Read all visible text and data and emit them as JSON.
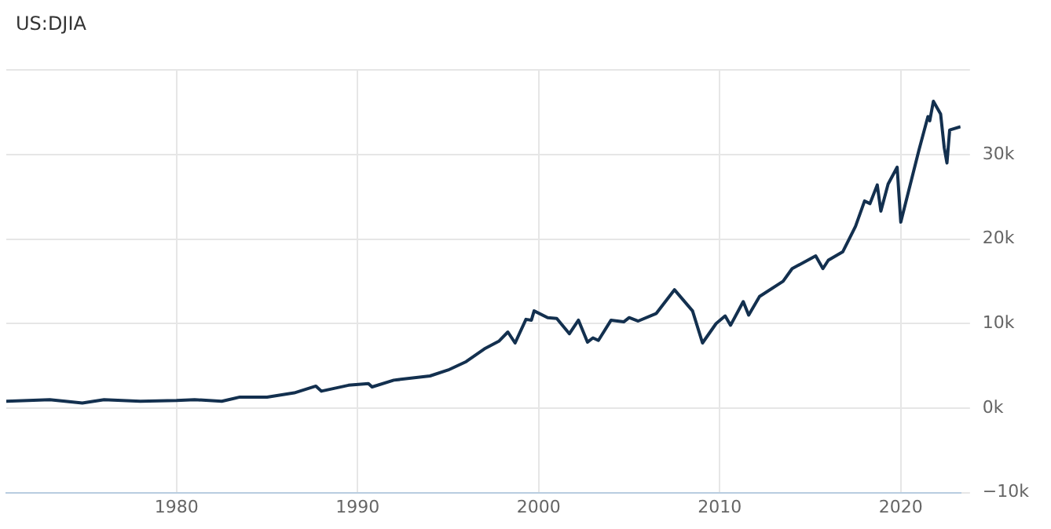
{
  "chart_data": {
    "type": "line",
    "title": "US:DJIA",
    "x": [
      1970.6,
      1973,
      1974.8,
      1976,
      1978,
      1980,
      1981,
      1982.5,
      1983.5,
      1985,
      1986.5,
      1987.7,
      1988,
      1989.5,
      1990.6,
      1990.8,
      1992,
      1994,
      1995,
      1996,
      1997,
      1997.8,
      1998.3,
      1998.7,
      1999.3,
      1999.6,
      1999.75,
      2000.5,
      2001,
      2001.7,
      2002.2,
      2002.7,
      2003,
      2003.3,
      2004,
      2004.7,
      2005,
      2005.5,
      2006.5,
      2007.5,
      2008.5,
      2009.05,
      2009.8,
      2010.3,
      2010.6,
      2011.3,
      2011.6,
      2012.2,
      2013.5,
      2014,
      2015.3,
      2015.7,
      2016,
      2016.8,
      2017.5,
      2018,
      2018.3,
      2018.7,
      2018.9,
      2019.3,
      2019.8,
      2020,
      2021,
      2021.5,
      2021.6,
      2021.8,
      2022.2,
      2022.4,
      2022.55,
      2022.7,
      2023.3
    ],
    "series": [
      {
        "color": "#13304f",
        "values": [
          800,
          1000,
          600,
          1000,
          800,
          900,
          1000,
          800,
          1300,
          1300,
          1800,
          2600,
          2000,
          2700,
          2900,
          2500,
          3300,
          3800,
          4500,
          5500,
          7000,
          7900,
          9000,
          7700,
          10500,
          10400,
          11500,
          10700,
          10600,
          8800,
          10400,
          7800,
          8300,
          8000,
          10400,
          10200,
          10700,
          10300,
          11200,
          14000,
          11500,
          7700,
          10000,
          10900,
          9800,
          12600,
          11000,
          13200,
          15000,
          16500,
          18000,
          16500,
          17500,
          18500,
          21500,
          24500,
          24200,
          26400,
          23300,
          26500,
          28500,
          22000,
          30500,
          34500,
          34000,
          36300,
          34800,
          30800,
          29000,
          32900,
          33300
        ]
      }
    ],
    "xlim": [
      1970.6,
      2023.3
    ],
    "xticks": [
      1980,
      1990,
      2000,
      2010,
      2020
    ],
    "ylim": [
      -10000,
      40000
    ],
    "yticks": [
      {
        "value": -10000,
        "label": "−10k"
      },
      {
        "value": 0,
        "label": "0k"
      },
      {
        "value": 10000,
        "label": "10k"
      },
      {
        "value": 20000,
        "label": "20k"
      },
      {
        "value": 30000,
        "label": "30k"
      },
      {
        "value": 40000,
        "label": null
      }
    ],
    "grid": true,
    "legend": false,
    "marker": "none",
    "line_style": "solid"
  }
}
